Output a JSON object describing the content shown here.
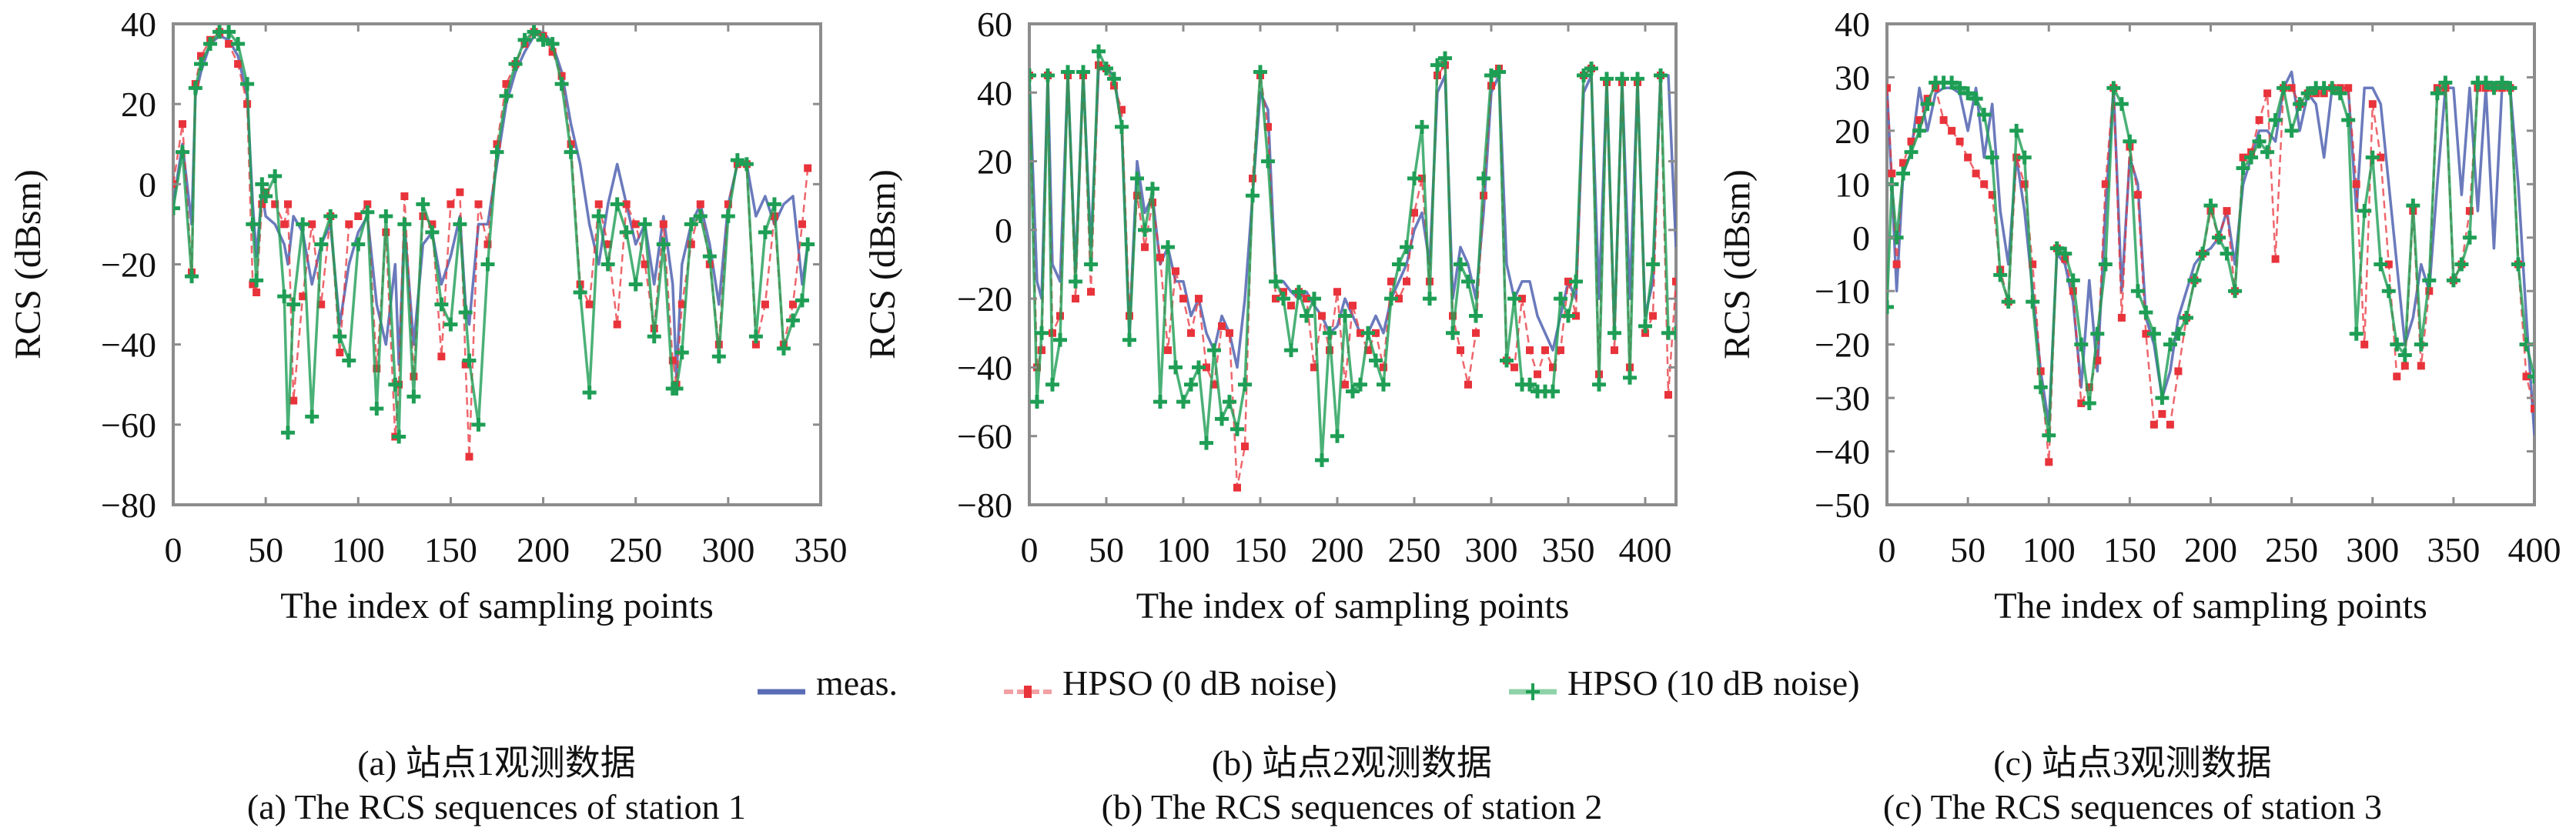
{
  "legend": [
    {
      "label": "meas.",
      "color": "#5a6cb5",
      "style": "solid"
    },
    {
      "label": "HPSO (0 dB noise)",
      "color": "#e8333b",
      "style": "dashed-marker"
    },
    {
      "label": "HPSO (10 dB noise)",
      "color": "#1e9e55",
      "style": "solid-marker"
    }
  ],
  "captions": [
    {
      "cn": "(a) 站点1观测数据",
      "en": "(a) The RCS sequences of station 1"
    },
    {
      "cn": "(b) 站点2观测数据",
      "en": "(b) The RCS sequences of station 2"
    },
    {
      "cn": "(c) 站点3观测数据",
      "en": "(c) The RCS sequences of station 3"
    }
  ],
  "chart_data": [
    {
      "type": "line",
      "title": "",
      "xlabel": "The index of sampling points",
      "ylabel": "RCS (dBsm)",
      "xlim": [
        0,
        350
      ],
      "ylim": [
        -80,
        40
      ],
      "xticks": [
        0,
        50,
        100,
        150,
        200,
        250,
        300,
        350
      ],
      "yticks": [
        40,
        20,
        0,
        -20,
        -40,
        -60,
        -80
      ],
      "grid": false,
      "x": [
        0,
        5,
        10,
        12,
        15,
        20,
        25,
        30,
        35,
        40,
        43,
        45,
        48,
        50,
        55,
        60,
        62,
        65,
        70,
        75,
        80,
        85,
        90,
        95,
        100,
        105,
        110,
        115,
        120,
        122,
        125,
        130,
        135,
        140,
        145,
        150,
        155,
        158,
        160,
        165,
        170,
        175,
        180,
        185,
        190,
        195,
        200,
        205,
        210,
        215,
        220,
        225,
        230,
        235,
        240,
        245,
        250,
        255,
        260,
        265,
        270,
        272,
        275,
        280,
        285,
        290,
        295,
        300,
        305,
        310,
        315,
        320,
        325,
        330,
        335,
        340,
        343
      ],
      "series": [
        {
          "name": "meas.",
          "values": [
            -5,
            10,
            -10,
            22,
            28,
            35,
            37,
            36,
            32,
            22,
            -5,
            -18,
            -2,
            -8,
            -10,
            -15,
            -20,
            -8,
            -12,
            -25,
            -15,
            -10,
            -35,
            -20,
            -12,
            -8,
            -30,
            -40,
            -20,
            -45,
            -10,
            -40,
            -15,
            -12,
            -25,
            -18,
            -8,
            -30,
            -35,
            -10,
            -10,
            5,
            20,
            28,
            33,
            37,
            38,
            35,
            28,
            15,
            5,
            -10,
            -20,
            -5,
            5,
            -5,
            -15,
            -10,
            -25,
            -8,
            -25,
            -48,
            -20,
            -10,
            -5,
            -15,
            -30,
            -5,
            5,
            5,
            -8,
            -3,
            -10,
            -5,
            -3,
            -25,
            -15
          ]
        },
        {
          "name": "HPSO (0 dB noise)",
          "values": [
            0,
            15,
            -22,
            25,
            32,
            36,
            38,
            35,
            30,
            20,
            -25,
            -27,
            -5,
            -2,
            -5,
            -10,
            -5,
            -54,
            -28,
            -10,
            -30,
            -8,
            -42,
            -10,
            -8,
            -5,
            -46,
            -12,
            -63,
            -50,
            -3,
            -48,
            -8,
            -10,
            -43,
            -5,
            -2,
            -45,
            -68,
            -5,
            -15,
            10,
            25,
            30,
            35,
            38,
            37,
            33,
            27,
            10,
            -25,
            -30,
            -5,
            -15,
            -35,
            -5,
            -10,
            -20,
            -36,
            -10,
            -44,
            -50,
            -30,
            -15,
            -5,
            -20,
            -40,
            -5,
            5,
            5,
            -40,
            -30,
            -8,
            -40,
            -30,
            -10,
            4
          ]
        },
        {
          "name": "HPSO (10 dB noise)",
          "values": [
            -6,
            8,
            -23,
            24,
            30,
            35,
            38,
            38,
            35,
            25,
            -10,
            -24,
            0,
            -3,
            2,
            -28,
            -62,
            -30,
            -10,
            -58,
            -15,
            -8,
            -38,
            -44,
            -15,
            -7,
            -56,
            -8,
            -50,
            -63,
            -10,
            -53,
            -5,
            -12,
            -30,
            -35,
            -10,
            -32,
            -44,
            -60,
            -20,
            8,
            22,
            30,
            36,
            38,
            36,
            35,
            25,
            8,
            -27,
            -52,
            -8,
            -20,
            -5,
            -12,
            -25,
            -10,
            -38,
            -15,
            -51,
            -51,
            -42,
            -10,
            -8,
            -18,
            -43,
            -8,
            6,
            5,
            -38,
            -12,
            -5,
            -41,
            -34,
            -29,
            -15
          ]
        }
      ]
    },
    {
      "type": "line",
      "title": "",
      "xlabel": "The index of sampling points",
      "ylabel": "RCS (dBsm)",
      "xlim": [
        0,
        420
      ],
      "ylim": [
        -80,
        60
      ],
      "xticks": [
        0,
        50,
        100,
        150,
        200,
        250,
        300,
        350,
        400
      ],
      "yticks": [
        60,
        40,
        20,
        0,
        -20,
        -40,
        -60,
        -80
      ],
      "grid": false,
      "x": [
        0,
        5,
        8,
        12,
        15,
        20,
        25,
        30,
        35,
        40,
        45,
        50,
        55,
        60,
        65,
        70,
        75,
        80,
        85,
        90,
        95,
        100,
        105,
        110,
        115,
        120,
        125,
        130,
        135,
        140,
        145,
        150,
        155,
        160,
        165,
        170,
        175,
        180,
        185,
        190,
        195,
        200,
        205,
        210,
        215,
        220,
        225,
        230,
        235,
        240,
        245,
        250,
        255,
        260,
        265,
        270,
        275,
        280,
        285,
        290,
        295,
        300,
        305,
        310,
        315,
        320,
        325,
        330,
        335,
        340,
        345,
        350,
        355,
        360,
        365,
        370,
        375,
        380,
        385,
        390,
        395,
        400,
        405,
        410,
        415,
        420
      ],
      "series": [
        {
          "name": "meas.",
          "values": [
            45,
            -15,
            -20,
            45,
            -10,
            -15,
            45,
            -12,
            45,
            -5,
            47,
            47,
            45,
            30,
            -30,
            20,
            5,
            10,
            -10,
            -5,
            -15,
            -15,
            -25,
            -20,
            -30,
            -35,
            -25,
            -30,
            -40,
            -20,
            10,
            40,
            35,
            -15,
            -15,
            -18,
            -20,
            -18,
            -22,
            -25,
            -30,
            -28,
            -20,
            -25,
            -30,
            -30,
            -25,
            -30,
            -20,
            -15,
            -10,
            0,
            5,
            -10,
            40,
            45,
            -20,
            -5,
            -10,
            -20,
            5,
            40,
            45,
            -10,
            -20,
            -15,
            -15,
            -25,
            -30,
            -35,
            -25,
            -15,
            -20,
            40,
            45,
            -20,
            43,
            -30,
            43,
            -20,
            43,
            -25,
            -15,
            45,
            45,
            -5
          ]
        },
        {
          "name": "HPSO (0 dB noise)",
          "values": [
            45,
            -40,
            -35,
            45,
            -30,
            -25,
            45,
            -20,
            45,
            -18,
            48,
            47,
            42,
            35,
            -25,
            10,
            -5,
            8,
            -8,
            -35,
            -12,
            -20,
            -30,
            -20,
            -40,
            -45,
            -28,
            -30,
            -75,
            -63,
            15,
            45,
            30,
            -20,
            -18,
            -22,
            -18,
            -20,
            -40,
            -25,
            -35,
            -18,
            -45,
            -22,
            -30,
            -35,
            -30,
            -40,
            -15,
            -20,
            -15,
            5,
            15,
            -15,
            45,
            48,
            -25,
            -35,
            -45,
            -30,
            10,
            42,
            47,
            -38,
            -40,
            -20,
            -35,
            -42,
            -35,
            -40,
            -35,
            -15,
            -25,
            45,
            47,
            -42,
            43,
            -35,
            43,
            -40,
            43,
            -30,
            -25,
            45,
            -48,
            -15
          ]
        },
        {
          "name": "HPSO (10 dB noise)",
          "values": [
            45,
            -50,
            -30,
            45,
            -45,
            -32,
            46,
            -15,
            46,
            -10,
            52,
            47,
            44,
            30,
            -32,
            15,
            0,
            12,
            -50,
            -5,
            -40,
            -50,
            -45,
            -40,
            -62,
            -35,
            -55,
            -50,
            -58,
            -45,
            10,
            46,
            20,
            -15,
            -20,
            -35,
            -18,
            -25,
            -20,
            -67,
            -30,
            -60,
            -25,
            -47,
            -45,
            -30,
            -38,
            -45,
            -20,
            -10,
            -5,
            15,
            30,
            -20,
            48,
            50,
            -30,
            -10,
            -15,
            -25,
            15,
            45,
            46,
            -38,
            -20,
            -45,
            -45,
            -47,
            -47,
            -47,
            -20,
            -25,
            -15,
            45,
            47,
            -45,
            44,
            -30,
            44,
            -43,
            44,
            -28,
            -10,
            45,
            -30,
            -30
          ]
        }
      ]
    },
    {
      "type": "line",
      "title": "",
      "xlabel": "The index of sampling points",
      "ylabel": "RCS (dBsm)",
      "xlim": [
        0,
        400
      ],
      "ylim": [
        -50,
        40
      ],
      "xticks": [
        0,
        50,
        100,
        150,
        200,
        250,
        300,
        350,
        400
      ],
      "yticks": [
        40,
        30,
        20,
        10,
        0,
        -10,
        -20,
        -30,
        -40,
        -50
      ],
      "grid": false,
      "x": [
        0,
        3,
        6,
        10,
        15,
        20,
        25,
        30,
        35,
        40,
        45,
        50,
        55,
        60,
        65,
        70,
        75,
        80,
        85,
        90,
        95,
        100,
        105,
        110,
        115,
        120,
        125,
        130,
        135,
        140,
        145,
        150,
        155,
        160,
        165,
        170,
        175,
        180,
        185,
        190,
        195,
        200,
        205,
        210,
        215,
        220,
        225,
        230,
        235,
        240,
        245,
        250,
        255,
        260,
        265,
        270,
        275,
        280,
        285,
        290,
        295,
        300,
        305,
        310,
        315,
        320,
        325,
        330,
        335,
        340,
        345,
        350,
        355,
        360,
        365,
        370,
        375,
        380,
        385,
        390,
        395,
        400
      ],
      "series": [
        {
          "name": "meas.",
          "values": [
            28,
            10,
            -10,
            12,
            16,
            28,
            20,
            27,
            28,
            28,
            27,
            20,
            28,
            15,
            25,
            5,
            -5,
            15,
            5,
            -10,
            -25,
            -35,
            -3,
            -5,
            -12,
            -28,
            -8,
            -25,
            5,
            28,
            -10,
            15,
            10,
            -15,
            -20,
            -30,
            -25,
            -15,
            -10,
            -5,
            -3,
            -2,
            0,
            5,
            -5,
            10,
            15,
            20,
            20,
            18,
            28,
            31,
            20,
            27,
            25,
            15,
            28,
            28,
            28,
            5,
            28,
            28,
            25,
            10,
            -5,
            -20,
            -15,
            -5,
            -10,
            10,
            28,
            28,
            8,
            28,
            5,
            28,
            -2,
            28,
            28,
            10,
            -15,
            -37
          ]
        },
        {
          "name": "HPSO (0 dB noise)",
          "values": [
            28,
            12,
            -5,
            14,
            18,
            22,
            26,
            28,
            22,
            20,
            18,
            15,
            12,
            10,
            8,
            -6,
            -12,
            15,
            10,
            -5,
            -25,
            -42,
            -2,
            -4,
            -10,
            -31,
            -28,
            -23,
            10,
            28,
            -15,
            17,
            8,
            -18,
            -35,
            -33,
            -35,
            -25,
            -15,
            -8,
            -3,
            5,
            0,
            5,
            -10,
            15,
            16,
            22,
            27,
            -4,
            28,
            28,
            25,
            27,
            27,
            27,
            28,
            28,
            28,
            10,
            -20,
            25,
            15,
            -5,
            -26,
            -24,
            5,
            -24,
            -10,
            28,
            28,
            -8,
            -5,
            5,
            28,
            28,
            28,
            28,
            28,
            -5,
            -26,
            -32
          ]
        },
        {
          "name": "HPSO (10 dB noise)",
          "values": [
            -13,
            10,
            0,
            12,
            16,
            20,
            25,
            29,
            29,
            29,
            28,
            27,
            26,
            23,
            15,
            -7,
            -12,
            20,
            15,
            -12,
            -28,
            -37,
            -2,
            -3,
            -8,
            -20,
            -31,
            -18,
            -5,
            28,
            25,
            18,
            -10,
            -14,
            -18,
            -30,
            -20,
            -18,
            -15,
            -8,
            -3,
            6,
            0,
            -3,
            -10,
            13,
            15,
            18,
            16,
            22,
            28,
            20,
            25,
            27,
            28,
            28,
            28,
            27,
            22,
            -18,
            5,
            15,
            -5,
            -10,
            -20,
            -22,
            6,
            -20,
            -8,
            27,
            29,
            -8,
            -5,
            0,
            29,
            29,
            28,
            29,
            28,
            -5,
            -20,
            -26
          ]
        }
      ]
    }
  ]
}
